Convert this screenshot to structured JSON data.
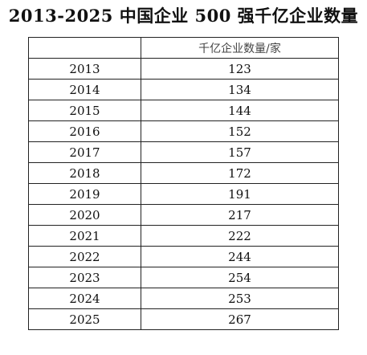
{
  "title": "2013-2025 中国企业 500 强千亿企业数量",
  "table": {
    "headers": [
      "",
      "千亿企业数量/家"
    ],
    "rows": [
      {
        "year": "2013",
        "count": "123"
      },
      {
        "year": "2014",
        "count": "134"
      },
      {
        "year": "2015",
        "count": "144"
      },
      {
        "year": "2016",
        "count": "152"
      },
      {
        "year": "2017",
        "count": "157"
      },
      {
        "year": "2018",
        "count": "172"
      },
      {
        "year": "2019",
        "count": "191"
      },
      {
        "year": "2020",
        "count": "217"
      },
      {
        "year": "2021",
        "count": "222"
      },
      {
        "year": "2022",
        "count": "244"
      },
      {
        "year": "2023",
        "count": "254"
      },
      {
        "year": "2024",
        "count": "253"
      },
      {
        "year": "2025",
        "count": "267"
      }
    ]
  }
}
